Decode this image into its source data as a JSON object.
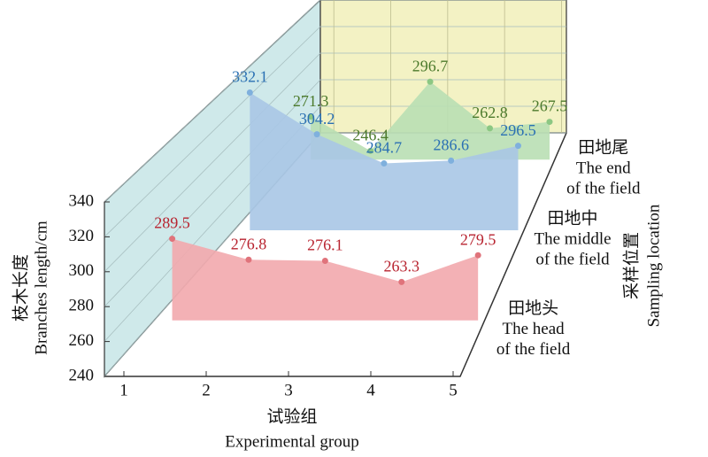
{
  "chart_data": {
    "type": "area3d",
    "y_label": [
      "枝木长度",
      "Branches length/cm"
    ],
    "x_label": [
      "试验组",
      "Experimental group"
    ],
    "z_label": [
      "采样位置",
      "Sampling location"
    ],
    "categories": [
      "1",
      "2",
      "3",
      "4",
      "5"
    ],
    "ylim": [
      240,
      340
    ],
    "yticks": [
      240,
      260,
      280,
      300,
      320,
      340
    ],
    "grid": true,
    "series": [
      {
        "name": [
          "田地头",
          "The head",
          "of the field"
        ],
        "color": "#f2a9ad",
        "point_color": "#e0737b",
        "label_color": "#b8232f",
        "values": [
          289.5,
          276.8,
          276.1,
          263.3,
          279.5
        ]
      },
      {
        "name": [
          "田地中",
          "The middle",
          "of the field"
        ],
        "color": "#a9c7e6",
        "point_color": "#7fb0dd",
        "label_color": "#2a70b3",
        "values": [
          332.1,
          304.2,
          284.7,
          286.6,
          296.5
        ]
      },
      {
        "name": [
          "田地尾",
          "The end",
          "of the field"
        ],
        "color": "#b9dfb4",
        "point_color": "#8cc783",
        "label_color": "#4c7a2c",
        "values": [
          271.3,
          246.4,
          296.7,
          262.8,
          267.5
        ]
      }
    ]
  }
}
